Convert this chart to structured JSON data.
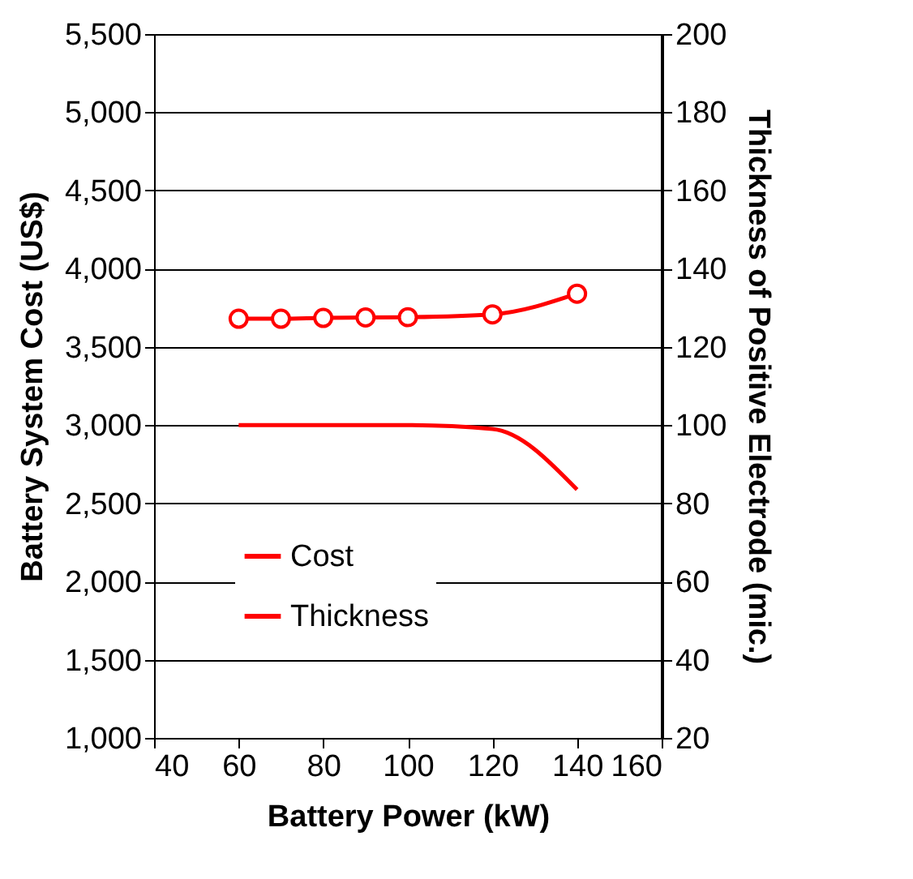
{
  "chart_data": {
    "type": "line",
    "xlabel": "Battery Power (kW)",
    "ylabel": "Battery System Cost (US$)",
    "y2label": "Thickness of Positive Electrode (mic.)",
    "x": [
      60,
      70,
      80,
      90,
      100,
      120,
      140
    ],
    "series": [
      {
        "name": "Cost",
        "color": "#ff0000",
        "marker": "circle",
        "values": [
          3680,
          3680,
          3685,
          3688,
          3690,
          3708,
          3840
        ]
      },
      {
        "name": "Thickness",
        "color": "#ff0000",
        "marker": "none",
        "axis": "y2",
        "values": [
          100,
          100,
          100,
          100,
          100,
          99,
          83.5
        ]
      }
    ],
    "xlim": [
      40,
      160
    ],
    "xticks": [
      40,
      60,
      80,
      100,
      120,
      140,
      160
    ],
    "ylim": [
      1000,
      5500
    ],
    "yticks": [
      {
        "value": 1000,
        "label": "1,000"
      },
      {
        "value": 1500,
        "label": "1,500"
      },
      {
        "value": 2000,
        "label": "2,000"
      },
      {
        "value": 2500,
        "label": "2,500"
      },
      {
        "value": 3000,
        "label": "3,000"
      },
      {
        "value": 3500,
        "label": "3,500"
      },
      {
        "value": 4000,
        "label": "4,000"
      },
      {
        "value": 4500,
        "label": "4,500"
      },
      {
        "value": 5000,
        "label": "5,000"
      },
      {
        "value": 5500,
        "label": "5,500"
      }
    ],
    "y2lim": [
      20,
      200
    ],
    "y2ticks": [
      20,
      40,
      60,
      80,
      100,
      120,
      140,
      160,
      180,
      200
    ],
    "grid": "y",
    "legend": "bottom"
  }
}
